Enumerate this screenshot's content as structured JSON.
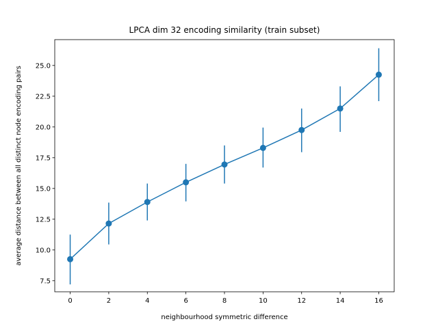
{
  "chart_data": {
    "type": "line",
    "title": "LPCA dim 32 encoding similarity (train subset)",
    "xlabel": "neighbourhood symmetric difference",
    "ylabel": "average distance between all distinct node encoding pairs",
    "xlim": [
      -0.8,
      16.8
    ],
    "ylim": [
      6.6,
      27.1
    ],
    "xticks": [
      0,
      2,
      4,
      6,
      8,
      10,
      12,
      14,
      16
    ],
    "yticks": [
      7.5,
      10.0,
      12.5,
      15.0,
      17.5,
      20.0,
      22.5,
      25.0
    ],
    "xtick_labels": [
      "0",
      "2",
      "4",
      "6",
      "8",
      "10",
      "12",
      "14",
      "16"
    ],
    "ytick_labels": [
      "7.5",
      "10.0",
      "12.5",
      "15.0",
      "17.5",
      "20.0",
      "22.5",
      "25.0"
    ],
    "grid": false,
    "color": "#1f77b4",
    "series": [
      {
        "x": [
          0,
          2,
          4,
          6,
          8,
          10,
          12,
          14,
          16
        ],
        "y": [
          9.25,
          12.15,
          13.9,
          15.5,
          16.95,
          18.3,
          19.75,
          21.5,
          24.25
        ],
        "err_low": [
          7.2,
          10.45,
          12.4,
          13.95,
          15.4,
          16.7,
          17.95,
          19.6,
          22.1
        ],
        "err_high": [
          11.25,
          13.85,
          15.4,
          17.0,
          18.5,
          19.95,
          21.5,
          23.3,
          26.4
        ]
      }
    ]
  }
}
